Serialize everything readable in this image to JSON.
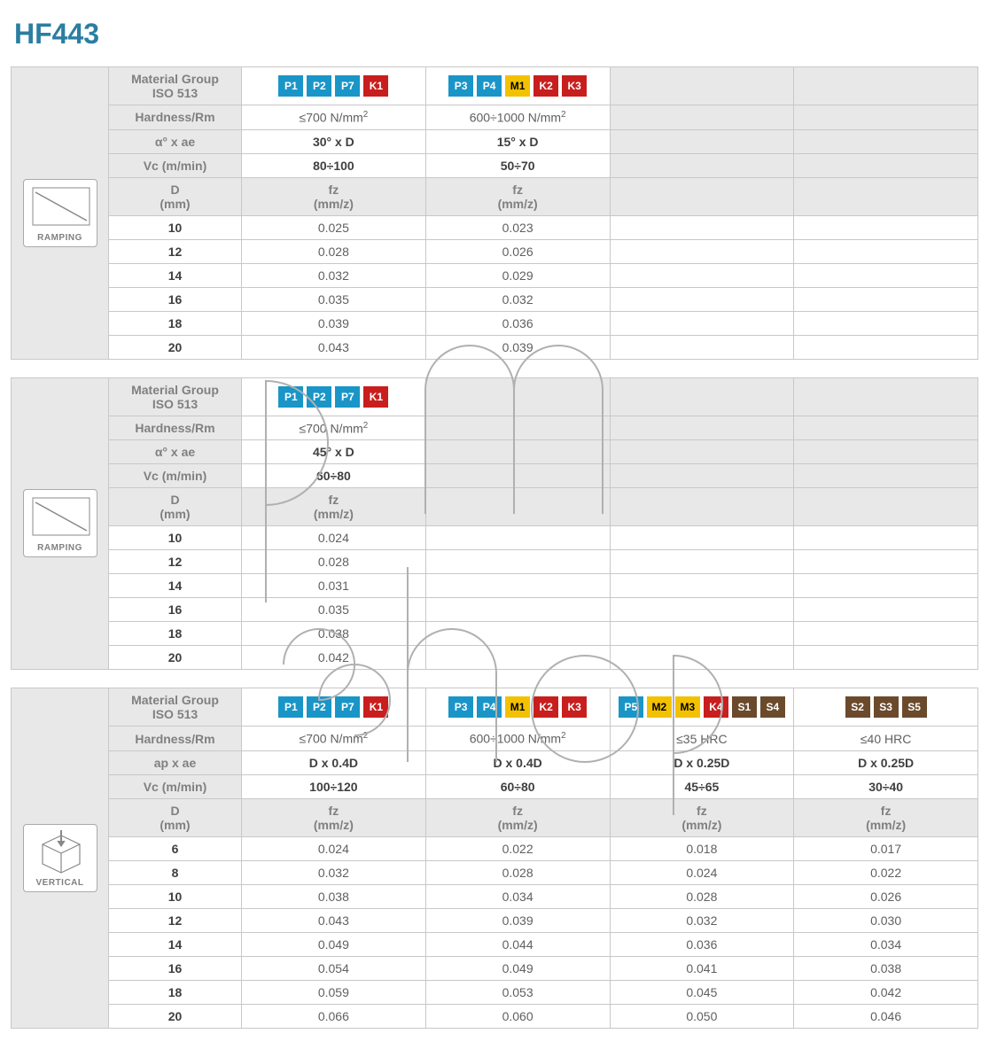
{
  "title": "HF443",
  "colors": {
    "P": "#1a95c8",
    "K": "#c81e1e",
    "M": "#f2c200",
    "S": "#6b4a2c"
  },
  "labels": {
    "material_group": "Material Group\nISO 513",
    "hardness": "Hardness/Rm",
    "alpha_ae": "α° x ae",
    "ap_ae": "ap x ae",
    "vc": "Vc (m/min)",
    "d_mm": "D\n(mm)",
    "fz": "fz\n(mm/z)",
    "ramping": "RAMPING",
    "vertical": "VERTICAL"
  },
  "sections": [
    {
      "icon": "ramping",
      "param_label": "alpha_ae",
      "groups": [
        {
          "chips": [
            {
              "t": "P1",
              "c": "P"
            },
            {
              "t": "P2",
              "c": "P"
            },
            {
              "t": "P7",
              "c": "P"
            },
            {
              "t": "K1",
              "c": "K"
            }
          ],
          "hardness": "≤700 N/mm²",
          "param": "30° x D",
          "vc": "80÷100"
        },
        {
          "chips": [
            {
              "t": "P3",
              "c": "P"
            },
            {
              "t": "P4",
              "c": "P"
            },
            {
              "t": "M1",
              "c": "M"
            },
            {
              "t": "K2",
              "c": "K"
            },
            {
              "t": "K3",
              "c": "K"
            }
          ],
          "hardness": "600÷1000 N/mm²",
          "param": "15° x D",
          "vc": "50÷70"
        },
        {
          "empty": true
        },
        {
          "empty": true
        }
      ],
      "rows": [
        {
          "d": "10",
          "v": [
            "0.025",
            "0.023",
            "",
            ""
          ]
        },
        {
          "d": "12",
          "v": [
            "0.028",
            "0.026",
            "",
            ""
          ]
        },
        {
          "d": "14",
          "v": [
            "0.032",
            "0.029",
            "",
            ""
          ]
        },
        {
          "d": "16",
          "v": [
            "0.035",
            "0.032",
            "",
            ""
          ]
        },
        {
          "d": "18",
          "v": [
            "0.039",
            "0.036",
            "",
            ""
          ]
        },
        {
          "d": "20",
          "v": [
            "0.043",
            "0.039",
            "",
            ""
          ]
        }
      ]
    },
    {
      "icon": "ramping",
      "param_label": "alpha_ae",
      "groups": [
        {
          "chips": [
            {
              "t": "P1",
              "c": "P"
            },
            {
              "t": "P2",
              "c": "P"
            },
            {
              "t": "P7",
              "c": "P"
            },
            {
              "t": "K1",
              "c": "K"
            }
          ],
          "hardness": "≤700 N/mm²",
          "param": "45° x D",
          "vc": "60÷80"
        },
        {
          "empty": true
        },
        {
          "empty": true
        },
        {
          "empty": true
        }
      ],
      "rows": [
        {
          "d": "10",
          "v": [
            "0.024",
            "",
            "",
            ""
          ]
        },
        {
          "d": "12",
          "v": [
            "0.028",
            "",
            "",
            ""
          ]
        },
        {
          "d": "14",
          "v": [
            "0.031",
            "",
            "",
            ""
          ]
        },
        {
          "d": "16",
          "v": [
            "0.035",
            "",
            "",
            ""
          ]
        },
        {
          "d": "18",
          "v": [
            "0.038",
            "",
            "",
            ""
          ]
        },
        {
          "d": "20",
          "v": [
            "0.042",
            "",
            "",
            ""
          ]
        }
      ]
    },
    {
      "icon": "vertical",
      "param_label": "ap_ae",
      "groups": [
        {
          "chips": [
            {
              "t": "P1",
              "c": "P"
            },
            {
              "t": "P2",
              "c": "P"
            },
            {
              "t": "P7",
              "c": "P"
            },
            {
              "t": "K1",
              "c": "K"
            }
          ],
          "hardness": "≤700 N/mm²",
          "param": "D x 0.4D",
          "vc": "100÷120"
        },
        {
          "chips": [
            {
              "t": "P3",
              "c": "P"
            },
            {
              "t": "P4",
              "c": "P"
            },
            {
              "t": "M1",
              "c": "M"
            },
            {
              "t": "K2",
              "c": "K"
            },
            {
              "t": "K3",
              "c": "K"
            }
          ],
          "hardness": "600÷1000 N/mm²",
          "param": "D x 0.4D",
          "vc": "60÷80"
        },
        {
          "chips": [
            {
              "t": "P5",
              "c": "P"
            },
            {
              "t": "M2",
              "c": "M"
            },
            {
              "t": "M3",
              "c": "M"
            },
            {
              "t": "K4",
              "c": "K"
            },
            {
              "t": "S1",
              "c": "S"
            },
            {
              "t": "S4",
              "c": "S"
            }
          ],
          "hardness": "≤35 HRC",
          "param": "D x 0.25D",
          "vc": "45÷65"
        },
        {
          "chips": [
            {
              "t": "S2",
              "c": "S"
            },
            {
              "t": "S3",
              "c": "S"
            },
            {
              "t": "S5",
              "c": "S"
            }
          ],
          "hardness": "≤40 HRC",
          "param": "D x 0.25D",
          "vc": "30÷40"
        }
      ],
      "rows": [
        {
          "d": "6",
          "v": [
            "0.024",
            "0.022",
            "0.018",
            "0.017"
          ]
        },
        {
          "d": "8",
          "v": [
            "0.032",
            "0.028",
            "0.024",
            "0.022"
          ]
        },
        {
          "d": "10",
          "v": [
            "0.038",
            "0.034",
            "0.028",
            "0.026"
          ]
        },
        {
          "d": "12",
          "v": [
            "0.043",
            "0.039",
            "0.032",
            "0.030"
          ]
        },
        {
          "d": "14",
          "v": [
            "0.049",
            "0.044",
            "0.036",
            "0.034"
          ]
        },
        {
          "d": "16",
          "v": [
            "0.054",
            "0.049",
            "0.041",
            "0.038"
          ]
        },
        {
          "d": "18",
          "v": [
            "0.059",
            "0.053",
            "0.045",
            "0.042"
          ]
        },
        {
          "d": "20",
          "v": [
            "0.066",
            "0.060",
            "0.050",
            "0.046"
          ]
        }
      ]
    }
  ]
}
